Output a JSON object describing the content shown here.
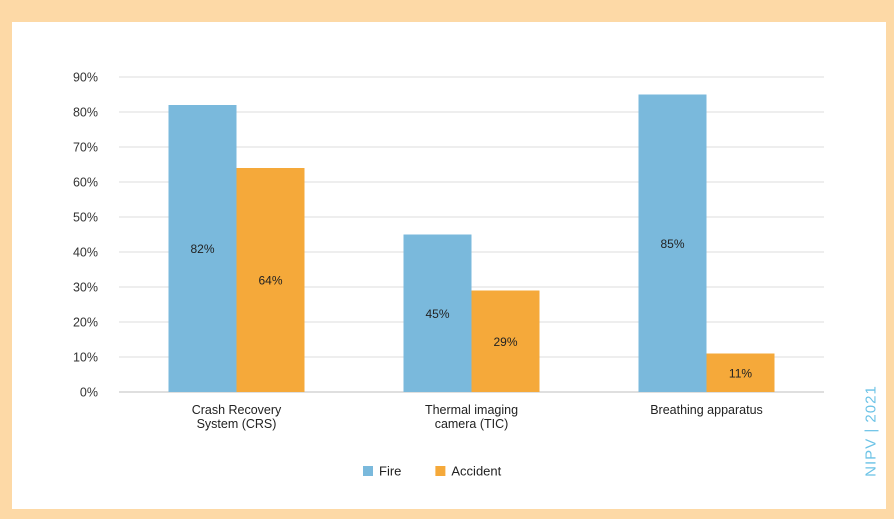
{
  "chart_data": {
    "type": "bar",
    "title": "",
    "xlabel": "",
    "ylabel": "",
    "categories": [
      "Crash Recovery System (CRS)",
      "Thermal imaging camera (TIC)",
      "Breathing apparatus"
    ],
    "category_lines": [
      [
        "Crash Recovery",
        "System (CRS)"
      ],
      [
        "Thermal imaging",
        "camera (TIC)"
      ],
      [
        "Breathing apparatus"
      ]
    ],
    "series": [
      {
        "name": "Fire",
        "values": [
          82,
          45,
          85
        ],
        "labels": [
          "82%",
          "45%",
          "85%"
        ],
        "color": "#7ab9dc"
      },
      {
        "name": "Accident",
        "values": [
          64,
          29,
          11
        ],
        "labels": [
          "64%",
          "29%",
          "11%"
        ],
        "color": "#f5a93a"
      }
    ],
    "ylim": [
      0,
      90
    ],
    "yticks": [
      0,
      10,
      20,
      30,
      40,
      50,
      60,
      70,
      80,
      90
    ],
    "ytick_labels": [
      "0%",
      "10%",
      "20%",
      "30%",
      "40%",
      "50%",
      "60%",
      "70%",
      "80%",
      "90%"
    ],
    "grid": true,
    "legend_position": "bottom-center"
  },
  "watermark": "NIPV | 2021"
}
